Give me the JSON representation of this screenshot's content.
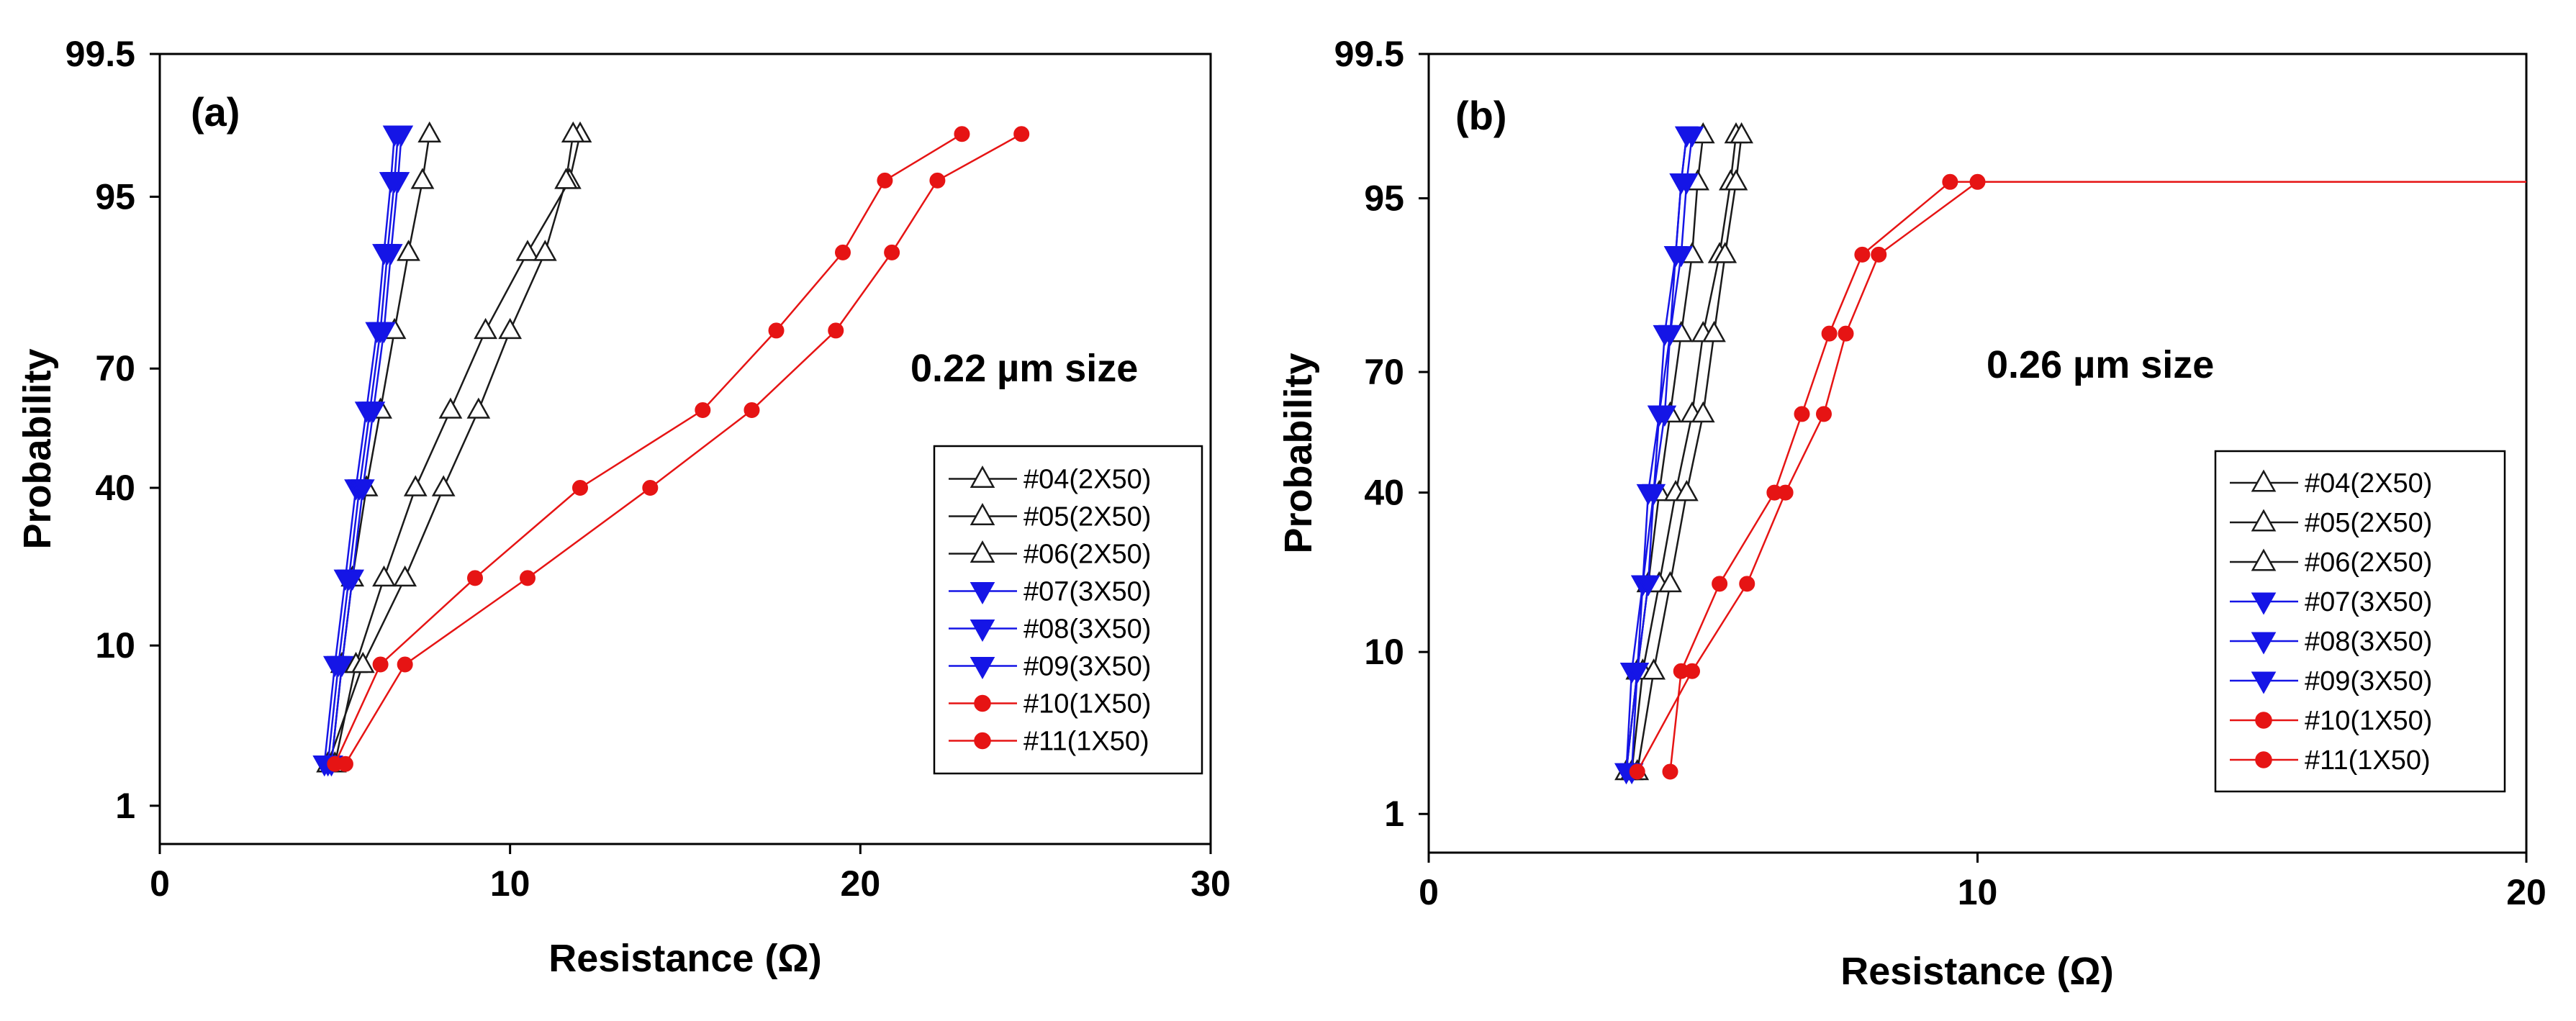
{
  "colors": {
    "black_series": "#1a1a1a",
    "blue_series": "#1515e6",
    "red_series": "#e61414"
  },
  "chart_data": [
    {
      "type": "scatter",
      "panel_label": "(a)",
      "annotation": "0.22 µm size",
      "xlabel": "Resistance (Ω)",
      "ylabel": "Probability",
      "xlim": [
        0,
        30
      ],
      "xticks": [
        0,
        10,
        20,
        30
      ],
      "ylim": [
        0.5,
        99.5
      ],
      "yticks": [
        "1",
        "10",
        "40",
        "70",
        "95",
        "99.5"
      ],
      "yscale": "probability",
      "legend": [
        {
          "label": "#04(2X50)",
          "marker": "triangle-up-open",
          "color": "#1a1a1a"
        },
        {
          "label": "#05(2X50)",
          "marker": "triangle-up-open",
          "color": "#1a1a1a"
        },
        {
          "label": "#06(2X50)",
          "marker": "triangle-up-open",
          "color": "#1a1a1a"
        },
        {
          "label": "#07(3X50)",
          "marker": "triangle-down-filled",
          "color": "#1515e6"
        },
        {
          "label": "#08(3X50)",
          "marker": "triangle-down-filled",
          "color": "#1515e6"
        },
        {
          "label": "#09(3X50)",
          "marker": "triangle-down-filled",
          "color": "#1515e6"
        },
        {
          "label": "#10(1X50)",
          "marker": "circle-filled",
          "color": "#e61414"
        },
        {
          "label": "#11(1X50)",
          "marker": "circle-filled",
          "color": "#e61414"
        }
      ],
      "series": [
        {
          "name": "#04(2X50)",
          "x": [
            4.9,
            5.2,
            5.5,
            5.9,
            6.3,
            6.7,
            7.1,
            7.5,
            7.7
          ],
          "y": [
            2,
            8,
            20,
            40,
            60,
            78,
            90,
            96,
            98
          ]
        },
        {
          "name": "#05(2X50)",
          "x": [
            5.0,
            5.6,
            6.4,
            7.3,
            8.3,
            9.3,
            10.5,
            11.7,
            12.0
          ],
          "y": [
            2,
            8,
            20,
            40,
            60,
            78,
            90,
            96,
            98
          ]
        },
        {
          "name": "#06(2X50)",
          "x": [
            4.8,
            5.8,
            7.0,
            8.1,
            9.1,
            10.0,
            11.0,
            11.6,
            11.8
          ],
          "y": [
            2,
            8,
            20,
            40,
            60,
            78,
            90,
            96,
            98
          ]
        },
        {
          "name": "#07(3X50)",
          "x": [
            4.7,
            5.0,
            5.3,
            5.6,
            5.9,
            6.2,
            6.4,
            6.6,
            6.7
          ],
          "y": [
            2,
            8,
            20,
            40,
            60,
            78,
            90,
            96,
            98
          ]
        },
        {
          "name": "#08(3X50)",
          "x": [
            4.8,
            5.1,
            5.4,
            5.7,
            6.0,
            6.3,
            6.5,
            6.7,
            6.8
          ],
          "y": [
            2,
            8,
            20,
            40,
            60,
            78,
            90,
            96,
            98
          ]
        },
        {
          "name": "#09(3X50)",
          "x": [
            4.9,
            5.2,
            5.5,
            5.8,
            6.1,
            6.4,
            6.6,
            6.8,
            6.9
          ],
          "y": [
            2,
            8,
            20,
            40,
            60,
            78,
            90,
            96,
            98
          ]
        },
        {
          "name": "#10(1X50)",
          "x": [
            5.0,
            6.3,
            9.0,
            12.0,
            15.5,
            17.6,
            19.5,
            20.7,
            22.9
          ],
          "y": [
            2,
            8,
            20,
            40,
            60,
            78,
            90,
            96,
            98
          ]
        },
        {
          "name": "#11(1X50)",
          "x": [
            5.3,
            7.0,
            10.5,
            14.0,
            16.9,
            19.3,
            20.9,
            22.2,
            24.6
          ],
          "y": [
            2,
            8,
            20,
            40,
            60,
            78,
            90,
            96,
            98
          ]
        }
      ]
    },
    {
      "type": "scatter",
      "panel_label": "(b)",
      "annotation": "0.26 µm size",
      "xlabel": "Resistance (Ω)",
      "ylabel": "Probability",
      "xlim": [
        0,
        20
      ],
      "xticks": [
        0,
        10,
        20
      ],
      "ylim": [
        0.5,
        99.5
      ],
      "yticks": [
        "1",
        "10",
        "40",
        "70",
        "95",
        "99.5"
      ],
      "yscale": "probability",
      "legend": [
        {
          "label": "#04(2X50)",
          "marker": "triangle-up-open",
          "color": "#1a1a1a"
        },
        {
          "label": "#05(2X50)",
          "marker": "triangle-up-open",
          "color": "#1a1a1a"
        },
        {
          "label": "#06(2X50)",
          "marker": "triangle-up-open",
          "color": "#1a1a1a"
        },
        {
          "label": "#07(3X50)",
          "marker": "triangle-down-filled",
          "color": "#1515e6"
        },
        {
          "label": "#08(3X50)",
          "marker": "triangle-down-filled",
          "color": "#1515e6"
        },
        {
          "label": "#09(3X50)",
          "marker": "triangle-down-filled",
          "color": "#1515e6"
        },
        {
          "label": "#10(1X50)",
          "marker": "circle-filled",
          "color": "#e61414"
        },
        {
          "label": "#11(1X50)",
          "marker": "circle-filled",
          "color": "#e61414"
        }
      ],
      "series": [
        {
          "name": "#04(2X50)",
          "x": [
            3.6,
            3.8,
            4.0,
            4.2,
            4.4,
            4.6,
            4.8,
            4.9,
            5.0
          ],
          "y": [
            2,
            8,
            20,
            40,
            60,
            78,
            90,
            96,
            98
          ]
        },
        {
          "name": "#05(2X50)",
          "x": [
            3.7,
            3.9,
            4.2,
            4.5,
            4.8,
            5.0,
            5.3,
            5.5,
            5.6
          ],
          "y": [
            2,
            8,
            20,
            40,
            60,
            78,
            90,
            96,
            98
          ]
        },
        {
          "name": "#06(2X50)",
          "x": [
            3.8,
            4.1,
            4.4,
            4.7,
            5.0,
            5.2,
            5.4,
            5.6,
            5.7
          ],
          "y": [
            2,
            8,
            20,
            40,
            60,
            78,
            90,
            96,
            98
          ]
        },
        {
          "name": "#07(3X50)",
          "x": [
            3.6,
            3.7,
            3.9,
            4.0,
            4.2,
            4.3,
            4.5,
            4.6,
            4.7
          ],
          "y": [
            2,
            8,
            20,
            40,
            60,
            78,
            90,
            96,
            98
          ]
        },
        {
          "name": "#08(3X50)",
          "x": [
            3.6,
            3.8,
            3.9,
            4.1,
            4.2,
            4.4,
            4.5,
            4.6,
            4.7
          ],
          "y": [
            2,
            8,
            20,
            40,
            60,
            78,
            90,
            96,
            98
          ]
        },
        {
          "name": "#09(3X50)",
          "x": [
            3.7,
            3.8,
            4.0,
            4.1,
            4.3,
            4.4,
            4.6,
            4.7,
            4.8
          ],
          "y": [
            2,
            8,
            20,
            40,
            60,
            78,
            90,
            96,
            98
          ]
        },
        {
          "name": "#10(1X50)",
          "x": [
            4.4,
            4.6,
            5.3,
            6.3,
            6.8,
            7.3,
            7.9,
            9.5,
            20.0
          ],
          "y": [
            2,
            8,
            20,
            40,
            60,
            78,
            90,
            96,
            96
          ]
        },
        {
          "name": "#11(1X50)",
          "x": [
            3.8,
            4.8,
            5.8,
            6.5,
            7.2,
            7.6,
            8.2,
            10.0,
            20.0
          ],
          "y": [
            2,
            8,
            20,
            40,
            60,
            78,
            90,
            96,
            96
          ]
        }
      ]
    }
  ]
}
